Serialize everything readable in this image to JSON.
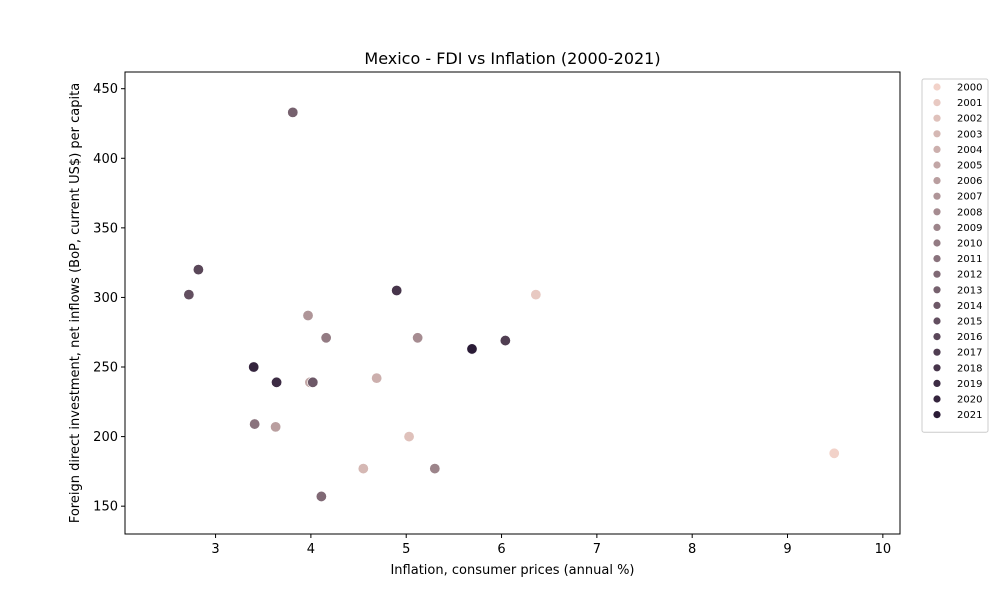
{
  "chart_data": {
    "type": "scatter",
    "title": "Mexico - FDI vs Inflation (2000-2021)",
    "xlabel": "Inflation, consumer prices (annual %)",
    "ylabel": "Foreign direct investment, net inflows (BoP, current US$) per capita",
    "xlim": [
      2.05,
      10.18
    ],
    "ylim": [
      130,
      462
    ],
    "xticks": [
      3,
      4,
      5,
      6,
      7,
      8,
      9,
      10
    ],
    "yticks": [
      150,
      200,
      250,
      300,
      350,
      400,
      450
    ],
    "grid": false,
    "legend_position": "right, outside plot",
    "color_scale": {
      "start": "#f2d2c9",
      "end": "#2a1b36"
    },
    "points": [
      {
        "year": "2000",
        "x": 9.49,
        "y": 188
      },
      {
        "year": "2001",
        "x": 6.36,
        "y": 302
      },
      {
        "year": "2002",
        "x": 5.03,
        "y": 200
      },
      {
        "year": "2003",
        "x": 4.55,
        "y": 177
      },
      {
        "year": "2004",
        "x": 4.69,
        "y": 242
      },
      {
        "year": "2005",
        "x": 3.99,
        "y": 239
      },
      {
        "year": "2006",
        "x": 3.63,
        "y": 207
      },
      {
        "year": "2007",
        "x": 3.97,
        "y": 287
      },
      {
        "year": "2008",
        "x": 5.12,
        "y": 271
      },
      {
        "year": "2009",
        "x": 5.3,
        "y": 177
      },
      {
        "year": "2010",
        "x": 4.16,
        "y": 271
      },
      {
        "year": "2011",
        "x": 3.41,
        "y": 209
      },
      {
        "year": "2012",
        "x": 4.11,
        "y": 157
      },
      {
        "year": "2013",
        "x": 3.81,
        "y": 433
      },
      {
        "year": "2014",
        "x": 4.02,
        "y": 239
      },
      {
        "year": "2015",
        "x": 2.72,
        "y": 302
      },
      {
        "year": "2016",
        "x": 2.82,
        "y": 320
      },
      {
        "year": "2017",
        "x": 6.04,
        "y": 269
      },
      {
        "year": "2018",
        "x": 4.9,
        "y": 305
      },
      {
        "year": "2019",
        "x": 3.64,
        "y": 239
      },
      {
        "year": "2020",
        "x": 3.4,
        "y": 250
      },
      {
        "year": "2021",
        "x": 5.69,
        "y": 263
      }
    ],
    "legend": [
      "2000",
      "2001",
      "2002",
      "2003",
      "2004",
      "2005",
      "2006",
      "2007",
      "2008",
      "2009",
      "2010",
      "2011",
      "2012",
      "2013",
      "2014",
      "2015",
      "2016",
      "2017",
      "2018",
      "2019",
      "2020",
      "2021"
    ]
  }
}
